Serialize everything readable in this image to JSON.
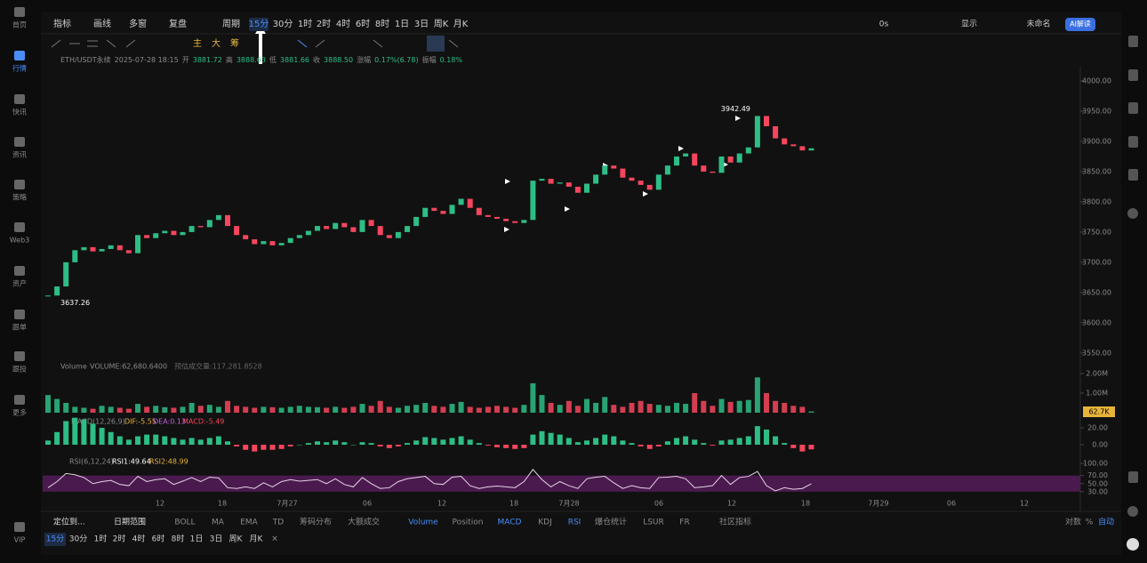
{
  "sidebar": [
    "首页",
    "行情",
    "快讯",
    "资讯",
    "策略",
    "Web3",
    "资产",
    "跟单",
    "跟投",
    "更多",
    "VIP"
  ],
  "toolbar": {
    "items": [
      {
        "label": "指标",
        "active": false
      },
      {
        "label": "画线",
        "active": false
      },
      {
        "label": "多窗",
        "active": false
      },
      {
        "label": "复盘",
        "active": false
      },
      {
        "label": "周期",
        "active": false
      },
      {
        "label": "15分",
        "active": true
      },
      {
        "label": "30分",
        "active": false
      },
      {
        "label": "1时",
        "active": false
      },
      {
        "label": "2时",
        "active": false
      },
      {
        "label": "4时",
        "active": false
      },
      {
        "label": "6时",
        "active": false
      },
      {
        "label": "8时",
        "active": false
      },
      {
        "label": "1日",
        "active": false
      },
      {
        "label": "3日",
        "active": false
      },
      {
        "label": "周K",
        "active": false
      },
      {
        "label": "月K",
        "active": false
      }
    ],
    "right": [
      "0s",
      "显示",
      "未命名"
    ],
    "ai": "AI解读"
  },
  "draw_tools": [
    "主",
    "大",
    "筹"
  ],
  "info": [
    "ETH/USDT永续",
    "2025-07-28 18:15",
    "开",
    "3881.72",
    "高",
    "3888.63",
    "低",
    "3881.66",
    "收",
    "3888.50",
    "涨幅",
    "0.17%(6.78)",
    "振幅",
    "0.18%"
  ],
  "chart_data": {
    "type": "candlestick",
    "closes": [
      3645,
      3660,
      3700,
      3720,
      3725,
      3718,
      3722,
      3728,
      3720,
      3715,
      3745,
      3740,
      3748,
      3752,
      3745,
      3750,
      3760,
      3758,
      3770,
      3778,
      3760,
      3745,
      3738,
      3730,
      3735,
      3728,
      3732,
      3740,
      3745,
      3752,
      3760,
      3755,
      3765,
      3758,
      3750,
      3770,
      3760,
      3745,
      3740,
      3750,
      3760,
      3775,
      3790,
      3785,
      3780,
      3795,
      3805,
      3790,
      3778,
      3775,
      3772,
      3768,
      3765,
      3770,
      3835,
      3838,
      3830,
      3832,
      3825,
      3815,
      3830,
      3845,
      3860,
      3855,
      3840,
      3835,
      3828,
      3820,
      3845,
      3860,
      3875,
      3880,
      3860,
      3850,
      3848,
      3875,
      3865,
      3880,
      3890,
      3942,
      3925,
      3905,
      3895,
      3892,
      3885,
      3888.5
    ],
    "ylim": [
      3538,
      4023.5
    ],
    "yticks": [
      {
        "value": 4000,
        "label": "4000.00"
      },
      {
        "value": 3950,
        "label": "3950.00"
      },
      {
        "value": 3900,
        "label": "3900.00"
      },
      {
        "value": 3850,
        "label": "3850.00"
      },
      {
        "value": 3800,
        "label": "3800.00"
      },
      {
        "value": 3750,
        "label": "3750.00"
      },
      {
        "value": 3700,
        "label": "3700.00"
      },
      {
        "value": 3650,
        "label": "3650.00"
      },
      {
        "value": 3600,
        "label": "3600.00"
      },
      {
        "value": 3550,
        "label": "3550.00"
      }
    ],
    "high_label": "3942.49",
    "low_label": "3637.26",
    "x_labels": [
      "12",
      "18",
      "7月27",
      "06",
      "12",
      "18",
      "7月28",
      "06",
      "12",
      "18",
      "7月29",
      "06",
      "12"
    ]
  },
  "volume": {
    "title": "Volume",
    "value_text": "VOLUME:62,680.6400",
    "forecast": "预估成交量:117,281.8528",
    "current_label": "62.7K",
    "values": [
      900000,
      700000,
      500000,
      300000,
      250000,
      200000,
      350000,
      300000,
      250000,
      200000,
      450000,
      300000,
      350000,
      280000,
      250000,
      300000,
      500000,
      350000,
      400000,
      300000,
      600000,
      350000,
      300000,
      250000,
      300000,
      280000,
      250000,
      300000,
      350000,
      300000,
      280000,
      250000,
      300000,
      250000,
      300000,
      450000,
      350000,
      600000,
      300000,
      250000,
      350000,
      400000,
      500000,
      350000,
      300000,
      450000,
      550000,
      300000,
      250000,
      300000,
      350000,
      300000,
      250000,
      400000,
      1500000,
      900000,
      500000,
      400000,
      600000,
      350000,
      700000,
      500000,
      800000,
      400000,
      300000,
      500000,
      600000,
      450000,
      400000,
      350000,
      500000,
      450000,
      1000000,
      600000,
      350000,
      700000,
      550000,
      600000,
      650000,
      1800000,
      1000000,
      600000,
      500000,
      350000,
      300000,
      62680.64
    ],
    "ylim": [
      0,
      2360000
    ],
    "yticks": [
      {
        "value": 2000000,
        "label": "2.00M"
      },
      {
        "value": 1000000,
        "label": "1.00M"
      }
    ]
  },
  "macd": {
    "title": "MACD(12,26,9)",
    "dif": "DIF:-5.55",
    "dea": "DEA:0.13",
    "macd": "MACD:-5.49",
    "values": [
      5,
      15,
      28,
      32,
      30,
      25,
      20,
      15,
      10,
      6,
      10,
      12,
      12,
      10,
      8,
      6,
      8,
      6,
      8,
      10,
      4,
      -2,
      -6,
      -8,
      -6,
      -6,
      -5,
      -2,
      0,
      2,
      4,
      3,
      5,
      3,
      0,
      3,
      2,
      -2,
      -4,
      -2,
      2,
      5,
      9,
      8,
      6,
      8,
      10,
      6,
      2,
      -1,
      -3,
      -4,
      -5,
      -4,
      12,
      16,
      14,
      12,
      8,
      3,
      5,
      8,
      12,
      10,
      5,
      2,
      -2,
      -5,
      -2,
      4,
      8,
      10,
      6,
      2,
      -1,
      5,
      6,
      8,
      10,
      22,
      18,
      10,
      2,
      -4,
      -8,
      -5.49
    ],
    "ylim": [
      -12.6,
      29.5
    ],
    "yticks": [
      {
        "value": 20,
        "label": "20.00"
      },
      {
        "value": 0,
        "label": "0.00"
      }
    ]
  },
  "rsi": {
    "title": "RSI(6,12,24)",
    "rsi1": "RSI1:49.64",
    "rsi2": "RSI2:48.99",
    "values": [
      40,
      55,
      75,
      72,
      65,
      50,
      55,
      58,
      48,
      45,
      68,
      55,
      60,
      62,
      48,
      56,
      65,
      55,
      66,
      64,
      40,
      38,
      42,
      38,
      52,
      42,
      55,
      60,
      56,
      58,
      60,
      50,
      62,
      48,
      42,
      65,
      50,
      38,
      40,
      55,
      62,
      65,
      68,
      50,
      48,
      66,
      68,
      45,
      38,
      42,
      44,
      42,
      40,
      55,
      85,
      60,
      42,
      55,
      45,
      38,
      62,
      66,
      68,
      52,
      38,
      45,
      40,
      38,
      65,
      66,
      68,
      62,
      40,
      42,
      45,
      70,
      48,
      65,
      68,
      80,
      45,
      32,
      40,
      36,
      38,
      49.64
    ],
    "ylim": [
      18.75,
      108.75
    ],
    "yticks": [
      {
        "value": 100,
        "label": "100.00"
      },
      {
        "value": 70,
        "label": "70.00"
      },
      {
        "value": 50,
        "label": "50.00"
      },
      {
        "value": 30,
        "label": "30.00"
      }
    ]
  },
  "bottom": {
    "locate": "定位到...",
    "range": "日期范围",
    "indicators": [
      {
        "label": "BOLL",
        "active": false
      },
      {
        "label": "MA",
        "active": false
      },
      {
        "label": "EMA",
        "active": false
      },
      {
        "label": "TD",
        "active": false
      },
      {
        "label": "筹码分布",
        "active": false
      },
      {
        "label": "大额成交",
        "active": false
      },
      {
        "label": "Volume",
        "active": true
      },
      {
        "label": "Position",
        "active": false
      },
      {
        "label": "MACD",
        "active": true
      },
      {
        "label": "KDJ",
        "active": false
      },
      {
        "label": "RSI",
        "active": true
      },
      {
        "label": "爆仓统计",
        "active": false
      },
      {
        "label": "LSUR",
        "active": false
      },
      {
        "label": "FR",
        "active": false
      },
      {
        "label": "社区指标",
        "active": false
      }
    ],
    "right": [
      "对数",
      "%",
      "自动"
    ],
    "periods": [
      "15分",
      "30分",
      "1时",
      "2时",
      "4时",
      "6时",
      "8时",
      "1日",
      "3日",
      "周K",
      "月K"
    ],
    "close": "✕"
  }
}
